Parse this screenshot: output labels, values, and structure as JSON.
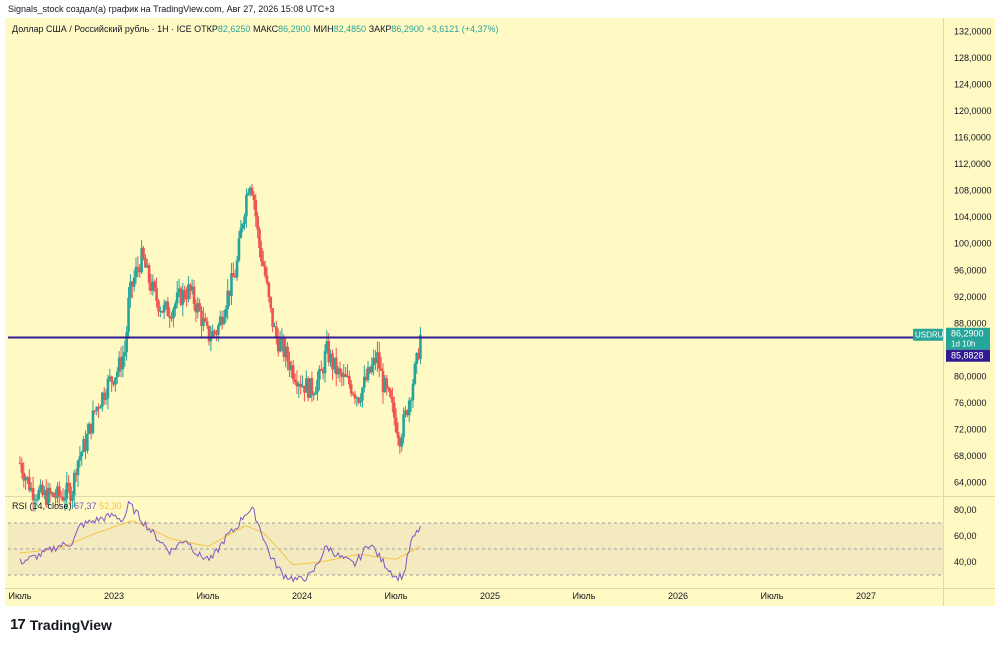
{
  "header": {
    "title": "Signals_stock создал(а) график на TradingView.com, Авг 27, 2026 15:08 UTC+3"
  },
  "legend": {
    "symbol": "Доллар США / Российский рубль · 1Н · ICE",
    "open_label": "ОТКР",
    "open": "82,6250",
    "high_label": "МАКС",
    "high": "86,2900",
    "low_label": "МИН",
    "low": "82,4850",
    "close_label": "ЗАКР",
    "close": "86,2900",
    "change": "+3,6121 (+4,37%)"
  },
  "price_tag": {
    "ticker": "USDRUB",
    "price": "86,2900",
    "countdown": "1d 10h",
    "line_value": "85,8828"
  },
  "rsi": {
    "label": "RSI (14, close)",
    "value": "67,37",
    "ma_value": "52,30",
    "axis_labels": [
      "80,00",
      "60,00",
      "40,00"
    ]
  },
  "footer": {
    "brand": "TradingView"
  },
  "colors": {
    "background": "#fff9c4",
    "up": "#26a69a",
    "down": "#ef5350",
    "level_line": "#311b92",
    "rsi_line": "#7e57c2",
    "rsi_ma": "#f4c542",
    "rsi_band": "#f3e8c0",
    "tag_teal": "#26a69a",
    "tag_purple": "#311b92"
  },
  "chart_data": {
    "type": "candlestick",
    "symbol": "USDRUB",
    "interval": "1W",
    "ylim": [
      62,
      134
    ],
    "y_ticks": [
      "132,0000",
      "128,0000",
      "124,0000",
      "120,0000",
      "116,0000",
      "112,0000",
      "108,0000",
      "104,0000",
      "100,0000",
      "96,0000",
      "92,0000",
      "88,0000",
      "80,0000",
      "76,0000",
      "72,0000",
      "68,0000",
      "64,0000"
    ],
    "x_ticks": [
      {
        "label": "Июль",
        "pos": 0.0
      },
      {
        "label": "2023",
        "pos": 0.5
      },
      {
        "label": "Июль",
        "pos": 1.0
      },
      {
        "label": "2024",
        "pos": 1.5
      },
      {
        "label": "Июль",
        "pos": 2.0
      },
      {
        "label": "2025",
        "pos": 2.5
      },
      {
        "label": "Июль",
        "pos": 3.0
      },
      {
        "label": "2026",
        "pos": 3.5
      },
      {
        "label": "Июль",
        "pos": 4.0
      },
      {
        "label": "2027",
        "pos": 4.5
      }
    ],
    "level_line": 85.8828,
    "last_price": 86.29,
    "path_anchors": [
      [
        0.0,
        67
      ],
      [
        0.06,
        63
      ],
      [
        0.12,
        62
      ],
      [
        0.22,
        62
      ],
      [
        0.28,
        63
      ],
      [
        0.3,
        67
      ],
      [
        0.35,
        70
      ],
      [
        0.4,
        75
      ],
      [
        0.47,
        79
      ],
      [
        0.52,
        81
      ],
      [
        0.56,
        84
      ],
      [
        0.58,
        92
      ],
      [
        0.62,
        96
      ],
      [
        0.65,
        98
      ],
      [
        0.68,
        95
      ],
      [
        0.72,
        92
      ],
      [
        0.76,
        90
      ],
      [
        0.8,
        90
      ],
      [
        0.85,
        92
      ],
      [
        0.9,
        93
      ],
      [
        0.95,
        90
      ],
      [
        1.0,
        86
      ],
      [
        1.05,
        87
      ],
      [
        1.1,
        92
      ],
      [
        1.15,
        96
      ],
      [
        1.18,
        103
      ],
      [
        1.22,
        110
      ],
      [
        1.24,
        108
      ],
      [
        1.27,
        100
      ],
      [
        1.3,
        96
      ],
      [
        1.33,
        90
      ],
      [
        1.36,
        86
      ],
      [
        1.4,
        84
      ],
      [
        1.45,
        81
      ],
      [
        1.5,
        79
      ],
      [
        1.55,
        78
      ],
      [
        1.6,
        80
      ],
      [
        1.63,
        84
      ],
      [
        1.66,
        82
      ],
      [
        1.7,
        80
      ],
      [
        1.75,
        79
      ],
      [
        1.8,
        77
      ],
      [
        1.85,
        80
      ],
      [
        1.9,
        83
      ],
      [
        1.93,
        79
      ],
      [
        1.97,
        76
      ],
      [
        2.0,
        73
      ],
      [
        2.02,
        71
      ],
      [
        2.05,
        74
      ],
      [
        2.08,
        78
      ],
      [
        2.11,
        82
      ],
      [
        2.13,
        86
      ]
    ],
    "rsi": {
      "ylim": [
        20,
        90
      ],
      "bands": [
        30,
        50,
        70
      ],
      "rsi_anchors": [
        [
          0.0,
          40
        ],
        [
          0.1,
          45
        ],
        [
          0.2,
          52
        ],
        [
          0.28,
          55
        ],
        [
          0.32,
          68
        ],
        [
          0.4,
          72
        ],
        [
          0.5,
          76
        ],
        [
          0.55,
          72
        ],
        [
          0.58,
          85
        ],
        [
          0.65,
          72
        ],
        [
          0.72,
          60
        ],
        [
          0.8,
          48
        ],
        [
          0.88,
          58
        ],
        [
          0.95,
          45
        ],
        [
          1.02,
          42
        ],
        [
          1.1,
          60
        ],
        [
          1.15,
          66
        ],
        [
          1.2,
          78
        ],
        [
          1.24,
          80
        ],
        [
          1.28,
          65
        ],
        [
          1.33,
          45
        ],
        [
          1.4,
          30
        ],
        [
          1.48,
          26
        ],
        [
          1.55,
          30
        ],
        [
          1.63,
          52
        ],
        [
          1.7,
          44
        ],
        [
          1.78,
          38
        ],
        [
          1.86,
          55
        ],
        [
          1.92,
          42
        ],
        [
          2.0,
          28
        ],
        [
          2.04,
          30
        ],
        [
          2.08,
          55
        ],
        [
          2.13,
          67
        ]
      ],
      "ma_anchors": [
        [
          0.0,
          47
        ],
        [
          0.2,
          50
        ],
        [
          0.4,
          62
        ],
        [
          0.6,
          72
        ],
        [
          0.8,
          58
        ],
        [
          1.0,
          52
        ],
        [
          1.2,
          68
        ],
        [
          1.3,
          62
        ],
        [
          1.45,
          38
        ],
        [
          1.6,
          40
        ],
        [
          1.8,
          46
        ],
        [
          2.0,
          42
        ],
        [
          2.13,
          52
        ]
      ]
    }
  }
}
